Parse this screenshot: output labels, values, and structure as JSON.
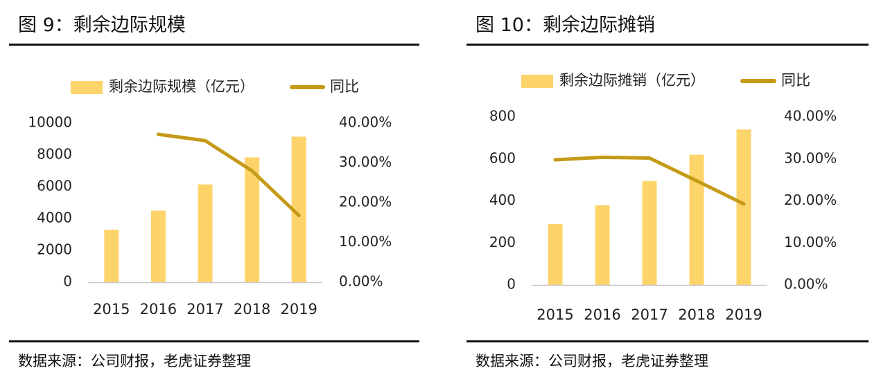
{
  "figures": [
    {
      "title": "图 9：剩余边际规模",
      "source": "数据来源：公司财报，老虎证券整理"
    },
    {
      "title": "图 10：剩余边际摊销",
      "source": "数据来源：公司财报，老虎证券整理"
    }
  ],
  "chart_data": [
    {
      "type": "bar",
      "categories": [
        "2015",
        "2016",
        "2017",
        "2018",
        "2019"
      ],
      "series": [
        {
          "name": "剩余边际规模（亿元）",
          "type": "bar",
          "axis": "left",
          "values": [
            3300,
            4500,
            6150,
            7850,
            9150
          ]
        },
        {
          "name": "同比",
          "type": "line",
          "axis": "right",
          "values": [
            null,
            0.372,
            0.356,
            0.28,
            0.168
          ]
        }
      ],
      "y_left": {
        "ticks": [
          "0",
          "2000",
          "4000",
          "6000",
          "8000",
          "10000"
        ],
        "lim": [
          0,
          10000
        ]
      },
      "y_right": {
        "ticks": [
          "0.00%",
          "10.00%",
          "20.00%",
          "30.00%",
          "40.00%"
        ],
        "lim": [
          0,
          0.4
        ]
      },
      "legend_position": "top",
      "grid": false,
      "colors": {
        "bar": "#FDD46A",
        "line": "#C59A17"
      }
    },
    {
      "type": "bar",
      "categories": [
        "2015",
        "2016",
        "2017",
        "2018",
        "2019"
      ],
      "series": [
        {
          "name": "剩余边际摊销（亿元）",
          "type": "bar",
          "axis": "left",
          "values": [
            290,
            380,
            495,
            620,
            740
          ]
        },
        {
          "name": "同比",
          "type": "line",
          "axis": "right",
          "values": [
            0.298,
            0.304,
            0.302,
            0.248,
            0.193
          ]
        }
      ],
      "y_left": {
        "ticks": [
          "0",
          "200",
          "400",
          "600",
          "800"
        ],
        "lim": [
          0,
          800
        ]
      },
      "y_right": {
        "ticks": [
          "0.00%",
          "10.00%",
          "20.00%",
          "30.00%",
          "40.00%"
        ],
        "lim": [
          0,
          0.4
        ]
      },
      "legend_position": "top",
      "grid": false,
      "colors": {
        "bar": "#FDD46A",
        "line": "#C59A17"
      }
    }
  ]
}
